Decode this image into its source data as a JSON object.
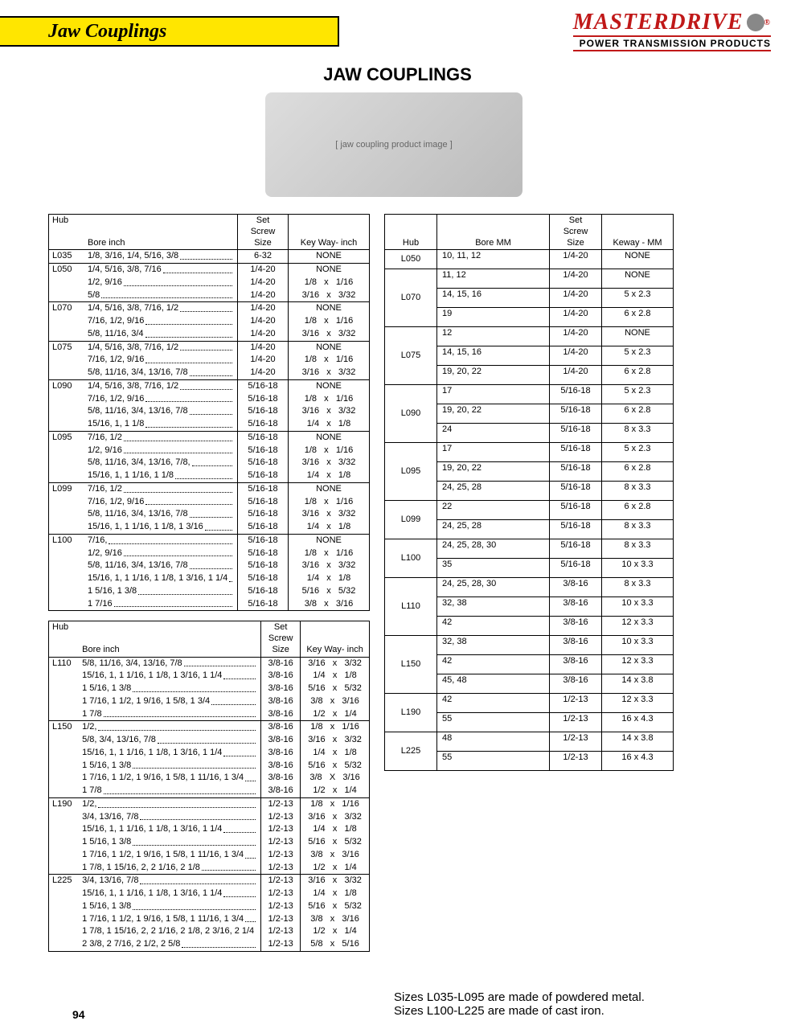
{
  "brand": {
    "name": "MASTERDRIVE",
    "tag": "POWER TRANSMISSION PRODUCTS"
  },
  "tab": "Jaw Couplings",
  "main_title": "JAW COUPLINGS",
  "page_num": "94",
  "footnote1": "Sizes L035-L095 are made of powdered metal.",
  "footnote2": "Sizes L100-L225 are made of cast iron.",
  "hdr_inch": {
    "hub": "Hub",
    "bore": "Bore inch",
    "screw": "Set\nScrew\nSize",
    "key": "Key Way- inch"
  },
  "hdr_mm": {
    "hub": "Hub",
    "bore": "Bore MM",
    "screw": "Set\nScrew\nSize",
    "key": "Keway - MM"
  },
  "t1": [
    {
      "hub": "L035",
      "rows": [
        {
          "b": "1/8, 3/16, 1/4, 5/16, 3/8",
          "s": "6-32",
          "k": "NONE"
        }
      ]
    },
    {
      "hub": "L050",
      "rows": [
        {
          "b": "1/4, 5/16, 3/8, 7/16",
          "s": "1/4-20",
          "k": "NONE"
        },
        {
          "b": "1/2, 9/16",
          "s": "1/4-20",
          "k": "1/8   x   1/16"
        },
        {
          "b": "5/8",
          "s": "1/4-20",
          "k": "3/16   x   3/32"
        }
      ]
    },
    {
      "hub": "L070",
      "rows": [
        {
          "b": "1/4, 5/16, 3/8, 7/16, 1/2",
          "s": "1/4-20",
          "k": "NONE"
        },
        {
          "b": "7/16, 1/2, 9/16",
          "s": "1/4-20",
          "k": "1/8   x   1/16"
        },
        {
          "b": "5/8, 11/16, 3/4",
          "s": "1/4-20",
          "k": "3/16   x   3/32"
        }
      ]
    },
    {
      "hub": "L075",
      "rows": [
        {
          "b": "1/4, 5/16, 3/8, 7/16, 1/2",
          "s": "1/4-20",
          "k": "NONE"
        },
        {
          "b": "7/16, 1/2, 9/16",
          "s": "1/4-20",
          "k": "1/8   x   1/16"
        },
        {
          "b": "5/8, 11/16, 3/4, 13/16, 7/8",
          "s": "1/4-20",
          "k": "3/16   x   3/32"
        }
      ]
    },
    {
      "hub": "L090",
      "rows": [
        {
          "b": "1/4, 5/16, 3/8, 7/16, 1/2",
          "s": "5/16-18",
          "k": "NONE"
        },
        {
          "b": "7/16, 1/2, 9/16",
          "s": "5/16-18",
          "k": "1/8   x   1/16"
        },
        {
          "b": "5/8, 11/16, 3/4, 13/16, 7/8",
          "s": "5/16-18",
          "k": "3/16   x   3/32"
        },
        {
          "b": "15/16, 1, 1 1/8",
          "s": "5/16-18",
          "k": "1/4   x   1/8"
        }
      ]
    },
    {
      "hub": "L095",
      "rows": [
        {
          "b": "7/16, 1/2",
          "s": "5/16-18",
          "k": "NONE"
        },
        {
          "b": "1/2, 9/16",
          "s": "5/16-18",
          "k": "1/8   x   1/16"
        },
        {
          "b": "5/8, 11/16, 3/4, 13/16, 7/8,",
          "s": "5/16-18",
          "k": "3/16   x   3/32"
        },
        {
          "b": "15/16, 1, 1 1/16, 1 1/8",
          "s": "5/16-18",
          "k": "1/4   x   1/8"
        }
      ]
    },
    {
      "hub": "L099",
      "rows": [
        {
          "b": "7/16, 1/2",
          "s": "5/16-18",
          "k": "NONE"
        },
        {
          "b": "7/16, 1/2, 9/16",
          "s": "5/16-18",
          "k": "1/8   x   1/16"
        },
        {
          "b": "5/8, 11/16, 3/4, 13/16, 7/8",
          "s": "5/16-18",
          "k": "3/16   x   3/32"
        },
        {
          "b": "15/16, 1, 1 1/16, 1 1/8, 1 3/16",
          "s": "5/16-18",
          "k": "1/4   x   1/8"
        }
      ]
    },
    {
      "hub": "L100",
      "rows": [
        {
          "b": "7/16,",
          "s": "5/16-18",
          "k": "NONE"
        },
        {
          "b": "1/2, 9/16",
          "s": "5/16-18",
          "k": "1/8   x   1/16"
        },
        {
          "b": "5/8, 11/16, 3/4, 13/16, 7/8",
          "s": "5/16-18",
          "k": "3/16   x   3/32"
        },
        {
          "b": "15/16, 1, 1 1/16, 1 1/8, 1 3/16, 1 1/4",
          "s": "5/16-18",
          "k": "1/4   x   1/8"
        },
        {
          "b": "1 5/16, 1 3/8",
          "s": "5/16-18",
          "k": "5/16   x   5/32"
        },
        {
          "b": "1 7/16",
          "s": "5/16-18",
          "k": "3/8   x   3/16"
        }
      ]
    }
  ],
  "t2": [
    {
      "hub": "L110",
      "rows": [
        {
          "b": "5/8, 11/16, 3/4, 13/16, 7/8",
          "s": "3/8-16",
          "k": "3/16   x   3/32"
        },
        {
          "b": "15/16, 1, 1 1/16, 1 1/8, 1 3/16, 1 1/4",
          "s": "3/8-16",
          "k": "1/4   x   1/8"
        },
        {
          "b": "1 5/16, 1 3/8",
          "s": "3/8-16",
          "k": "5/16   x   5/32"
        },
        {
          "b": "1 7/16, 1 1/2, 1 9/16, 1 5/8, 1 3/4",
          "s": "3/8-16",
          "k": "3/8   x   3/16"
        },
        {
          "b": "1 7/8",
          "s": "3/8-16",
          "k": "1/2   x   1/4"
        }
      ]
    },
    {
      "hub": "L150",
      "rows": [
        {
          "b": "1/2,",
          "s": "3/8-16",
          "k": "1/8   x   1/16"
        },
        {
          "b": "5/8, 3/4, 13/16, 7/8",
          "s": "3/8-16",
          "k": "3/16   x   3/32"
        },
        {
          "b": "15/16, 1, 1 1/16, 1 1/8, 1 3/16, 1 1/4",
          "s": "3/8-16",
          "k": "1/4   x   1/8"
        },
        {
          "b": "1 5/16, 1 3/8",
          "s": "3/8-16",
          "k": "5/16   x   5/32"
        },
        {
          "b": "1 7/16, 1 1/2, 1 9/16, 1 5/8, 1 11/16, 1 3/4",
          "s": "3/8-16",
          "k": "3/8   X   3/16"
        },
        {
          "b": "1 7/8",
          "s": "3/8-16",
          "k": "1/2   x   1/4"
        }
      ]
    },
    {
      "hub": "L190",
      "rows": [
        {
          "b": "1/2,",
          "s": "1/2-13",
          "k": "1/8   x   1/16"
        },
        {
          "b": "3/4, 13/16, 7/8",
          "s": "1/2-13",
          "k": "3/16   x   3/32"
        },
        {
          "b": "15/16, 1, 1 1/16, 1 1/8, 1 3/16, 1 1/4",
          "s": "1/2-13",
          "k": "1/4   x   1/8"
        },
        {
          "b": "1 5/16, 1 3/8",
          "s": "1/2-13",
          "k": "5/16   x   5/32"
        },
        {
          "b": "1 7/16, 1 1/2, 1 9/16, 1 5/8, 1 11/16, 1 3/4",
          "s": "1/2-13",
          "k": "3/8   x   3/16"
        },
        {
          "b": "1 7/8, 1 15/16, 2, 2 1/16, 2 1/8",
          "s": "1/2-13",
          "k": "1/2   x   1/4"
        }
      ]
    },
    {
      "hub": "L225",
      "rows": [
        {
          "b": "3/4, 13/16, 7/8",
          "s": "1/2-13",
          "k": "3/16   x   3/32"
        },
        {
          "b": "15/16, 1, 1 1/16, 1 1/8, 1 3/16, 1 1/4",
          "s": "1/2-13",
          "k": "1/4   x   1/8"
        },
        {
          "b": "1 5/16, 1 3/8",
          "s": "1/2-13",
          "k": "5/16   x   5/32"
        },
        {
          "b": "1 7/16, 1 1/2, 1 9/16, 1 5/8, 1 11/16, 1 3/4",
          "s": "1/2-13",
          "k": "3/8   x   3/16"
        },
        {
          "b": "1 7/8, 1 15/16, 2, 2 1/16, 2 1/8, 2 3/16, 2 1/4",
          "s": "1/2-13",
          "k": "1/2   x   1/4"
        },
        {
          "b": "2 3/8, 2 7/16, 2 1/2, 2 5/8",
          "s": "1/2-13",
          "k": "5/8   x   5/16"
        }
      ]
    }
  ],
  "tmm": [
    {
      "hub": "L050",
      "rows": [
        {
          "b": "10, 11, 12",
          "s": "1/4-20",
          "k": "NONE"
        }
      ]
    },
    {
      "hub": "L070",
      "rows": [
        {
          "b": "11, 12",
          "s": "1/4-20",
          "k": "NONE"
        },
        {
          "b": "14, 15, 16",
          "s": "1/4-20",
          "k": "5 x 2.3"
        },
        {
          "b": "19",
          "s": "1/4-20",
          "k": "6 x 2.8"
        }
      ]
    },
    {
      "hub": "L075",
      "rows": [
        {
          "b": "12",
          "s": "1/4-20",
          "k": "NONE"
        },
        {
          "b": "14, 15, 16",
          "s": "1/4-20",
          "k": "5 x 2.3"
        },
        {
          "b": "19, 20, 22",
          "s": "1/4-20",
          "k": "6 x 2.8"
        }
      ]
    },
    {
      "hub": "L090",
      "rows": [
        {
          "b": "17",
          "s": "5/16-18",
          "k": "5 x 2.3"
        },
        {
          "b": "19, 20, 22",
          "s": "5/16-18",
          "k": "6 x 2.8"
        },
        {
          "b": "24",
          "s": "5/16-18",
          "k": "8 x 3.3"
        }
      ]
    },
    {
      "hub": "L095",
      "rows": [
        {
          "b": "17",
          "s": "5/16-18",
          "k": "5 x 2.3"
        },
        {
          "b": "19, 20, 22",
          "s": "5/16-18",
          "k": "6 x 2.8"
        },
        {
          "b": "24, 25, 28",
          "s": "5/16-18",
          "k": "8 x 3.3"
        }
      ]
    },
    {
      "hub": "L099",
      "rows": [
        {
          "b": "22",
          "s": "5/16-18",
          "k": "6 x 2.8"
        },
        {
          "b": "24, 25, 28",
          "s": "5/16-18",
          "k": "8 x 3.3"
        }
      ]
    },
    {
      "hub": "L100",
      "rows": [
        {
          "b": "24, 25, 28, 30",
          "s": "5/16-18",
          "k": "8 x 3.3"
        },
        {
          "b": "35",
          "s": "5/16-18",
          "k": "10 x 3.3"
        }
      ]
    },
    {
      "hub": "L110",
      "rows": [
        {
          "b": "24, 25, 28, 30",
          "s": "3/8-16",
          "k": "8 x 3.3"
        },
        {
          "b": "32, 38",
          "s": "3/8-16",
          "k": "10 x 3.3"
        },
        {
          "b": "42",
          "s": "3/8-16",
          "k": "12 x 3.3"
        }
      ]
    },
    {
      "hub": "L150",
      "rows": [
        {
          "b": "32, 38",
          "s": "3/8-16",
          "k": "10 x 3.3"
        },
        {
          "b": "42",
          "s": "3/8-16",
          "k": "12 x 3.3"
        },
        {
          "b": "45, 48",
          "s": "3/8-16",
          "k": "14 x 3.8"
        }
      ]
    },
    {
      "hub": "L190",
      "rows": [
        {
          "b": "42",
          "s": "1/2-13",
          "k": "12 x 3.3"
        },
        {
          "b": "55",
          "s": "1/2-13",
          "k": "16 x 4.3"
        }
      ]
    },
    {
      "hub": "L225",
      "rows": [
        {
          "b": "48",
          "s": "1/2-13",
          "k": "14 x 3.8"
        },
        {
          "b": "55",
          "s": "1/2-13",
          "k": "16 x 4.3"
        }
      ]
    }
  ]
}
